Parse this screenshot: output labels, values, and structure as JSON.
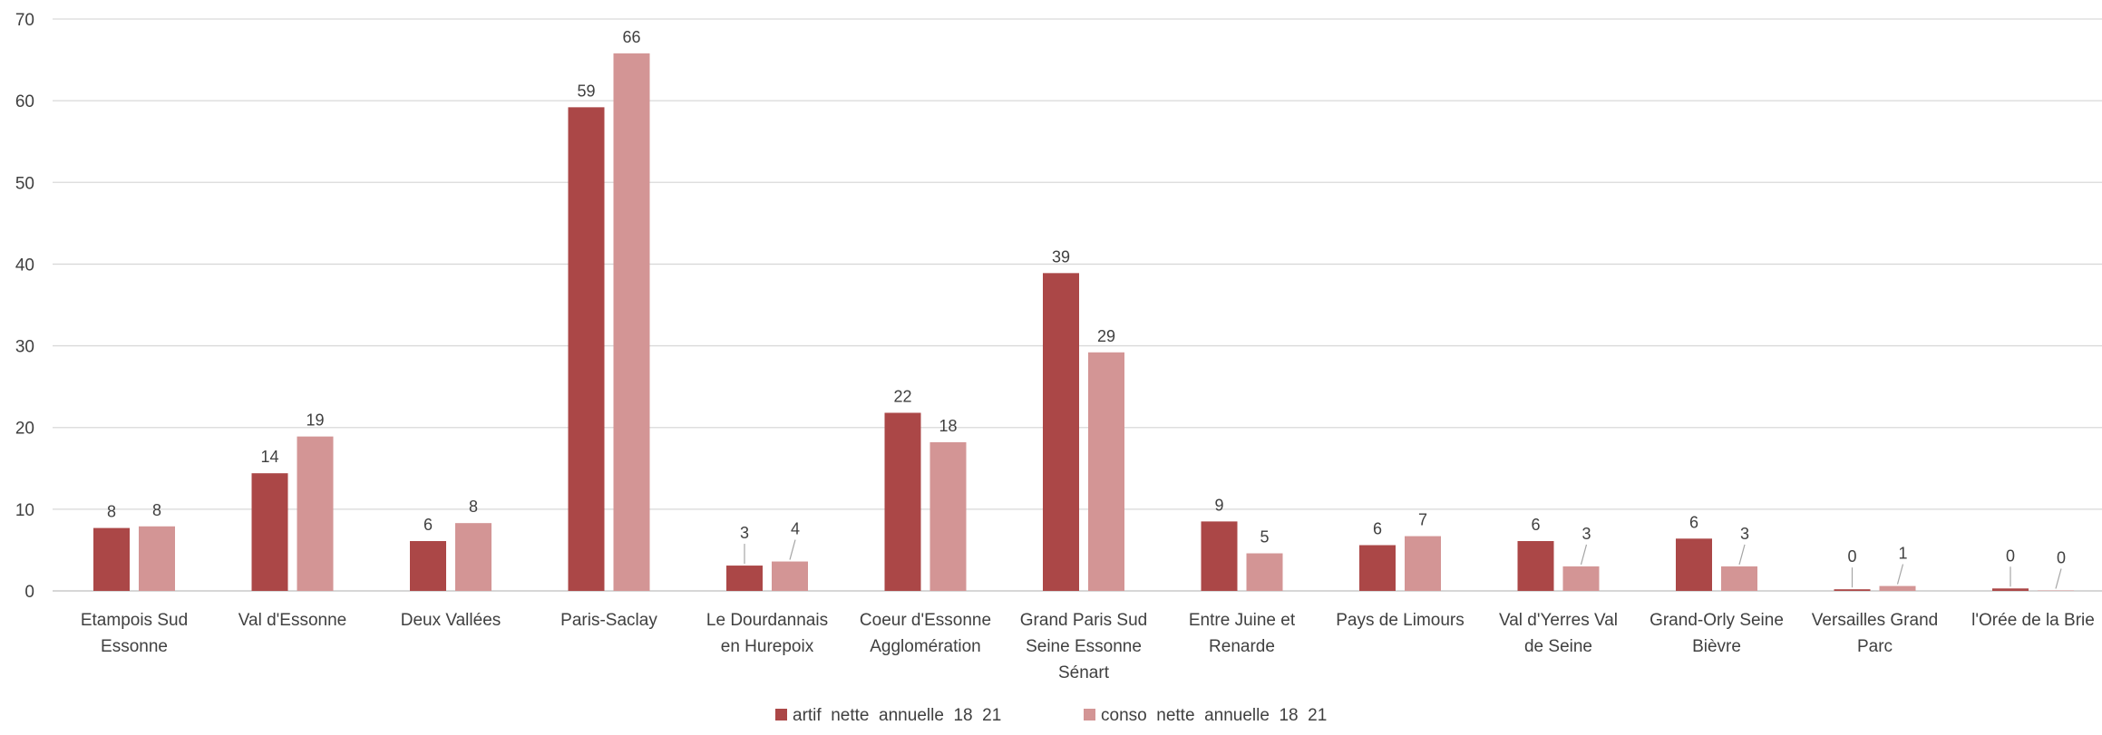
{
  "chart_data": {
    "type": "bar",
    "title": "",
    "xlabel": "",
    "ylabel": "",
    "ylim": [
      0,
      70
    ],
    "yticks": [
      0,
      10,
      20,
      30,
      40,
      50,
      60,
      70
    ],
    "grid": true,
    "legend_position": "bottom",
    "categories": [
      [
        "Etampois Sud",
        "Essonne"
      ],
      [
        "Val d'Essonne"
      ],
      [
        "Deux Vallées"
      ],
      [
        "Paris-Saclay"
      ],
      [
        "Le Dourdannais",
        "en Hurepoix"
      ],
      [
        "Coeur d'Essonne",
        "Agglomération"
      ],
      [
        "Grand Paris Sud",
        "Seine Essonne",
        "Sénart"
      ],
      [
        "Entre Juine et",
        "Renarde"
      ],
      [
        "Pays de Limours"
      ],
      [
        "Val d'Yerres Val",
        "de Seine"
      ],
      [
        "Grand-Orly Seine",
        "Bièvre"
      ],
      [
        "Versailles Grand",
        "Parc"
      ],
      [
        "l'Orée de la Brie"
      ]
    ],
    "series": [
      {
        "name": "artif  nette  annuelle  18  21",
        "color": "#ab4747",
        "values": [
          7.7,
          14.4,
          6.1,
          59.2,
          3.1,
          21.8,
          38.9,
          8.5,
          5.6,
          6.1,
          6.4,
          0.2,
          0.3
        ],
        "labels": [
          "8",
          "14",
          "6",
          "59",
          "3",
          "22",
          "39",
          "9",
          "6",
          "6",
          "6",
          "0",
          "0"
        ]
      },
      {
        "name": "conso  nette  annuelle  18  21",
        "color": "#d39595",
        "values": [
          7.9,
          18.9,
          8.3,
          65.8,
          3.6,
          18.2,
          29.2,
          4.6,
          6.7,
          3.0,
          3.0,
          0.6,
          0.05
        ],
        "labels": [
          "8",
          "19",
          "8",
          "66",
          "4",
          "18",
          "29",
          "5",
          "7",
          "3",
          "3",
          "1",
          "0"
        ]
      }
    ]
  }
}
